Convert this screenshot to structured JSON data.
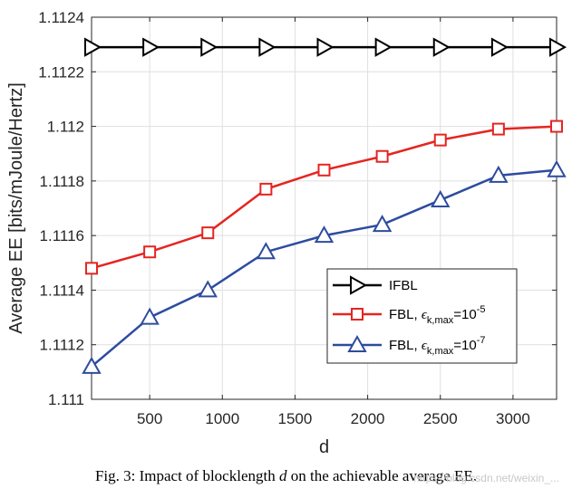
{
  "chart_data": {
    "type": "line",
    "xlabel": "d",
    "ylabel": "Average EE [bits/mJoule/Hertz]",
    "xlim": [
      100,
      3300
    ],
    "ylim": [
      1.111,
      1.1124
    ],
    "xticks": [
      500,
      1000,
      1500,
      2000,
      2500,
      3000
    ],
    "xtick_labels": [
      "500",
      "1000",
      "1500",
      "2000",
      "2500",
      "3000"
    ],
    "yticks": [
      1.111,
      1.1112,
      1.1114,
      1.1116,
      1.1118,
      1.112,
      1.1122,
      1.1124
    ],
    "ytick_labels": [
      "1.111",
      "1.1112",
      "1.1114",
      "1.1116",
      "1.1118",
      "1.112",
      "1.1122",
      "1.1124"
    ],
    "grid": true,
    "legend_position": "bottom-right",
    "x": [
      100,
      500,
      900,
      1300,
      1700,
      2100,
      2500,
      2900,
      3300
    ],
    "series": [
      {
        "name": "IFBL",
        "legend": {
          "main": "IFBL"
        },
        "color": "#000000",
        "marker": "triangle-right",
        "values": [
          1.11229,
          1.11229,
          1.11229,
          1.11229,
          1.11229,
          1.11229,
          1.11229,
          1.11229,
          1.11229
        ]
      },
      {
        "name": "FBL, ε_k,max=10^-5",
        "legend": {
          "prefix": "FBL, ",
          "eps": "ϵ",
          "sub": "k,max",
          "eq": "=10",
          "sup": "-5"
        },
        "color": "#e52521",
        "marker": "square",
        "values": [
          1.11148,
          1.11154,
          1.11161,
          1.11177,
          1.11184,
          1.11189,
          1.11195,
          1.11199,
          1.112
        ]
      },
      {
        "name": "FBL, ε_k,max=10^-7",
        "legend": {
          "prefix": "FBL, ",
          "eps": "ϵ",
          "sub": "k,max",
          "eq": "=10",
          "sup": "-7"
        },
        "color": "#2d4c9e",
        "marker": "triangle-up",
        "values": [
          1.11112,
          1.1113,
          1.1114,
          1.11154,
          1.1116,
          1.11164,
          1.11173,
          1.11182,
          1.11184
        ]
      }
    ]
  },
  "caption": {
    "prefix": "Fig. 3: Impact of blocklength ",
    "var": "d",
    "suffix": " on the achievable average EE."
  },
  "watermark": "https://blog.csdn.net/weixin_..."
}
